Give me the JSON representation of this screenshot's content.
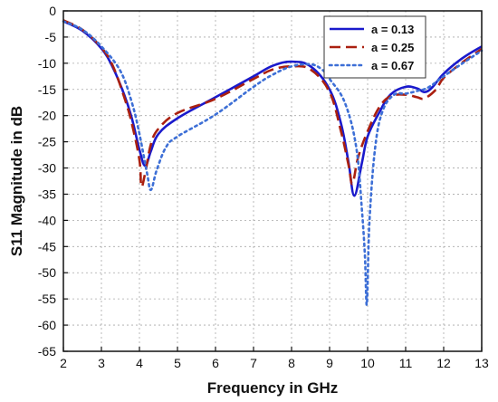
{
  "chart_data": {
    "type": "line",
    "xlabel": "Frequency in GHz",
    "ylabel": "S11 Magnitude in dB",
    "xlim": [
      2,
      13
    ],
    "ylim": [
      -65,
      0
    ],
    "x_ticks": [
      2,
      3,
      4,
      5,
      6,
      7,
      8,
      9,
      10,
      11,
      12,
      13
    ],
    "y_ticks": [
      0,
      -5,
      -10,
      -15,
      -20,
      -25,
      -30,
      -35,
      -40,
      -45,
      -50,
      -55,
      -60,
      -65
    ],
    "grid": true,
    "legend_position": "top-right",
    "series": [
      {
        "name": "a = 0.13",
        "color": "#1a1acc",
        "style": "solid",
        "points": [
          [
            2.0,
            -2.0
          ],
          [
            2.5,
            -3.8
          ],
          [
            3.0,
            -7.2
          ],
          [
            3.3,
            -10.8
          ],
          [
            3.6,
            -16.0
          ],
          [
            3.8,
            -20.5
          ],
          [
            4.0,
            -26.5
          ],
          [
            4.15,
            -29.6
          ],
          [
            4.3,
            -26.8
          ],
          [
            4.5,
            -23.5
          ],
          [
            5.0,
            -20.5
          ],
          [
            6.0,
            -16.5
          ],
          [
            7.0,
            -12.5
          ],
          [
            7.5,
            -10.5
          ],
          [
            8.0,
            -9.7
          ],
          [
            8.5,
            -10.6
          ],
          [
            9.0,
            -15.0
          ],
          [
            9.3,
            -21.5
          ],
          [
            9.5,
            -29.0
          ],
          [
            9.65,
            -35.3
          ],
          [
            9.85,
            -29.0
          ],
          [
            10.0,
            -24.0
          ],
          [
            10.3,
            -19.5
          ],
          [
            10.6,
            -16.0
          ],
          [
            11.0,
            -14.5
          ],
          [
            11.3,
            -14.8
          ],
          [
            11.5,
            -15.5
          ],
          [
            11.7,
            -14.6
          ],
          [
            12.0,
            -12.0
          ],
          [
            12.5,
            -9.0
          ],
          [
            13.0,
            -6.8
          ]
        ]
      },
      {
        "name": "a = 0.25",
        "color": "#aa2010",
        "style": "dashed",
        "points": [
          [
            2.0,
            -1.8
          ],
          [
            2.5,
            -3.6
          ],
          [
            3.0,
            -7.0
          ],
          [
            3.3,
            -10.5
          ],
          [
            3.6,
            -16.5
          ],
          [
            3.8,
            -21.5
          ],
          [
            4.0,
            -28.5
          ],
          [
            4.05,
            -33.5
          ],
          [
            4.15,
            -31.0
          ],
          [
            4.3,
            -25.5
          ],
          [
            4.5,
            -22.5
          ],
          [
            5.0,
            -19.5
          ],
          [
            6.0,
            -16.8
          ],
          [
            7.0,
            -13.0
          ],
          [
            7.5,
            -11.2
          ],
          [
            8.0,
            -10.6
          ],
          [
            8.5,
            -11.2
          ],
          [
            9.0,
            -15.5
          ],
          [
            9.3,
            -23.0
          ],
          [
            9.5,
            -29.5
          ],
          [
            9.6,
            -33.0
          ],
          [
            9.75,
            -28.0
          ],
          [
            10.0,
            -23.0
          ],
          [
            10.3,
            -18.5
          ],
          [
            10.6,
            -16.3
          ],
          [
            11.0,
            -16.0
          ],
          [
            11.3,
            -16.5
          ],
          [
            11.5,
            -16.7
          ],
          [
            11.8,
            -15.0
          ],
          [
            12.0,
            -12.8
          ],
          [
            12.5,
            -9.8
          ],
          [
            13.0,
            -7.3
          ]
        ]
      },
      {
        "name": "a = 0.67",
        "color": "#3d6fd6",
        "style": "dotted",
        "points": [
          [
            2.0,
            -2.0
          ],
          [
            2.5,
            -3.6
          ],
          [
            3.0,
            -6.8
          ],
          [
            3.5,
            -11.5
          ],
          [
            3.8,
            -17.5
          ],
          [
            4.0,
            -23.5
          ],
          [
            4.2,
            -31.0
          ],
          [
            4.3,
            -34.2
          ],
          [
            4.45,
            -30.5
          ],
          [
            4.7,
            -26.0
          ],
          [
            5.0,
            -24.0
          ],
          [
            6.0,
            -19.8
          ],
          [
            7.0,
            -14.5
          ],
          [
            7.5,
            -12.2
          ],
          [
            8.0,
            -10.6
          ],
          [
            8.5,
            -10.2
          ],
          [
            8.8,
            -11.2
          ],
          [
            9.0,
            -13.0
          ],
          [
            9.4,
            -17.5
          ],
          [
            9.7,
            -26.0
          ],
          [
            9.85,
            -38.0
          ],
          [
            9.93,
            -47.0
          ],
          [
            9.98,
            -56.0
          ],
          [
            10.05,
            -40.0
          ],
          [
            10.2,
            -26.0
          ],
          [
            10.4,
            -19.0
          ],
          [
            10.7,
            -16.0
          ],
          [
            11.0,
            -15.8
          ],
          [
            11.3,
            -15.3
          ],
          [
            11.6,
            -14.6
          ],
          [
            12.0,
            -12.5
          ],
          [
            12.5,
            -10.0
          ],
          [
            13.0,
            -7.6
          ]
        ]
      }
    ]
  }
}
